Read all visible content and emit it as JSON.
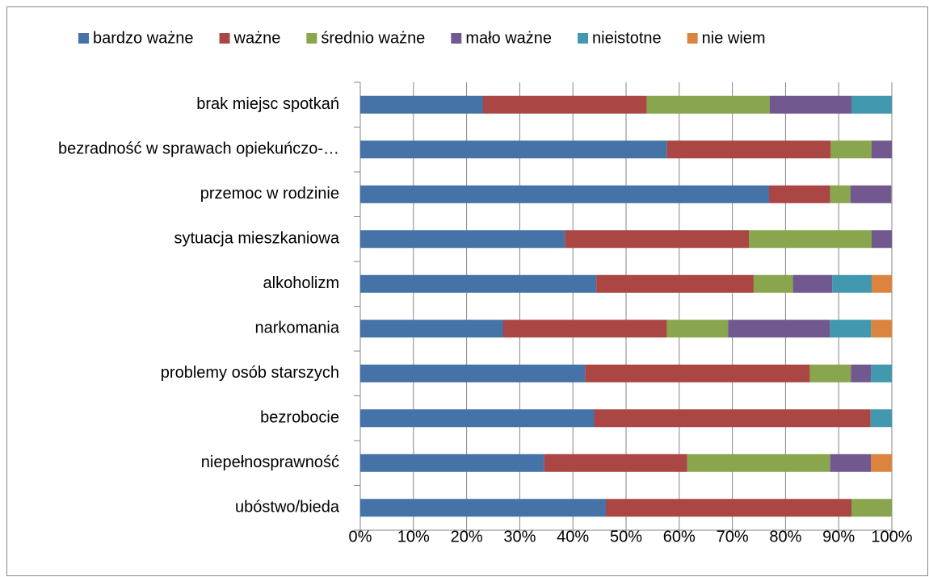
{
  "chart_data": {
    "type": "stacked-bar-horizontal",
    "categories": [
      "brak miejsc spotkań",
      "bezradność w sprawach opiekuńczo-…",
      "przemoc w rodzinie",
      "sytuacja mieszkaniowa",
      "alkoholizm",
      "narkomania",
      "problemy osób starszych",
      "bezrobocie",
      "niepełnosprawność",
      "ubóstwo/bieda"
    ],
    "series": [
      {
        "name": "bardzo ważne",
        "color": "#4572a7",
        "values": [
          23.1,
          57.7,
          76.9,
          38.5,
          44.4,
          26.9,
          42.3,
          44,
          34.6,
          46.2
        ]
      },
      {
        "name": "ważne",
        "color": "#aa4643",
        "values": [
          30.8,
          30.8,
          11.5,
          34.6,
          29.6,
          30.8,
          42.3,
          52,
          26.9,
          46.2
        ]
      },
      {
        "name": "średnio ważne",
        "color": "#89a54e",
        "values": [
          23.1,
          7.7,
          3.8,
          23.1,
          7.4,
          11.5,
          7.7,
          0,
          26.9,
          7.6
        ]
      },
      {
        "name": "mało ważne",
        "color": "#71588f",
        "values": [
          15.4,
          3.8,
          7.7,
          3.8,
          7.4,
          19.2,
          3.8,
          0,
          7.7,
          0
        ]
      },
      {
        "name": "nieistotne",
        "color": "#4198af",
        "values": [
          7.6,
          0,
          0,
          0,
          7.4,
          7.7,
          3.9,
          4,
          0,
          0
        ]
      },
      {
        "name": "nie wiem",
        "color": "#db843d",
        "values": [
          0,
          0,
          0,
          0,
          3.8,
          3.9,
          0,
          0,
          3.9,
          0
        ]
      }
    ],
    "xlim": [
      0,
      100
    ],
    "xticks": [
      {
        "value": 0,
        "label": "0%"
      },
      {
        "value": 10,
        "label": "10%"
      },
      {
        "value": 20,
        "label": "20%"
      },
      {
        "value": 30,
        "label": "30%"
      },
      {
        "value": 40,
        "label": "40%"
      },
      {
        "value": 50,
        "label": "50%"
      },
      {
        "value": 60,
        "label": "60%"
      },
      {
        "value": 70,
        "label": "70%"
      },
      {
        "value": 80,
        "label": "80%"
      },
      {
        "value": 90,
        "label": "90%"
      },
      {
        "value": 100,
        "label": "100%"
      }
    ],
    "grid": true,
    "legend": "top"
  }
}
